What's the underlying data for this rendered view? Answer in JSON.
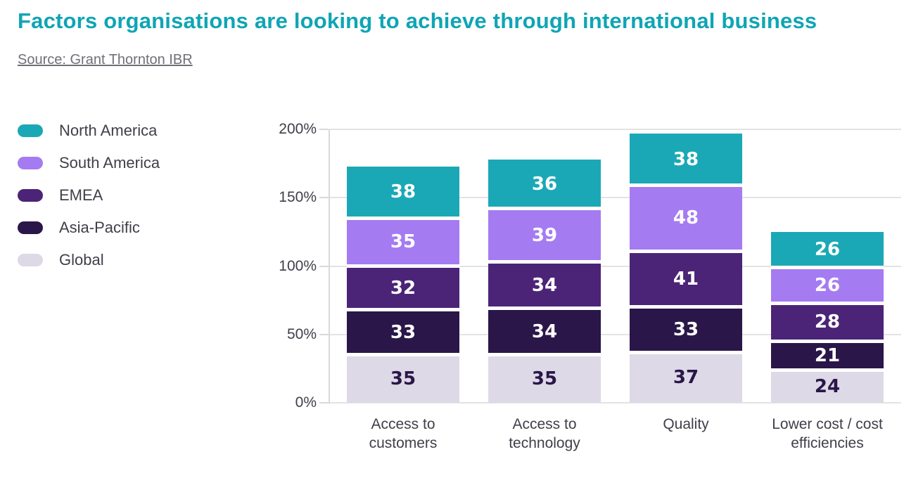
{
  "title": "Factors organisations are looking to achieve through international business",
  "source_text": "Source: Grant Thornton IBR",
  "colors": {
    "title": "#0FA5B5",
    "source": "#6F6F78",
    "text_dark": "#3F3F4A",
    "gridline": "#E3E3E6",
    "axis": "#D9D9DD",
    "value_on_dark": "#FFFFFF",
    "value_on_light": "#2A1649"
  },
  "legend": {
    "items": [
      {
        "label": "North America",
        "color": "#1BA8B6"
      },
      {
        "label": "South America",
        "color": "#A57BF2"
      },
      {
        "label": "EMEA",
        "color": "#4B2477"
      },
      {
        "label": "Asia-Pacific",
        "color": "#2A1649"
      },
      {
        "label": "Global",
        "color": "#DDD9E6"
      }
    ]
  },
  "chart_data": {
    "type": "bar",
    "variant": "stacked-column",
    "title": "Factors organisations are looking to achieve through international business",
    "categories": [
      "Access to customers",
      "Access to technology",
      "Quality",
      "Lower cost / cost efficiencies"
    ],
    "series_bottom_to_top": [
      {
        "name": "Global",
        "color": "#DDD9E6",
        "label_color": "#2A1649",
        "values": [
          35,
          35,
          37,
          24
        ]
      },
      {
        "name": "Asia-Pacific",
        "color": "#2A1649",
        "label_color": "#FFFFFF",
        "values": [
          33,
          34,
          33,
          21
        ]
      },
      {
        "name": "EMEA",
        "color": "#4B2477",
        "label_color": "#FFFFFF",
        "values": [
          32,
          34,
          41,
          28
        ]
      },
      {
        "name": "South America",
        "color": "#A57BF2",
        "label_color": "#FFFFFF",
        "values": [
          35,
          39,
          48,
          26
        ]
      },
      {
        "name": "North America",
        "color": "#1BA8B6",
        "label_color": "#FFFFFF",
        "values": [
          38,
          36,
          38,
          26
        ]
      }
    ],
    "stack_totals": [
      173,
      178,
      197,
      125
    ],
    "y_axis": {
      "tick_labels": [
        "0%",
        "50%",
        "100%",
        "150%",
        "200%"
      ],
      "min": 0,
      "max": 200,
      "grid": true
    },
    "legend_position": "left",
    "xlabel": "",
    "ylabel": ""
  }
}
